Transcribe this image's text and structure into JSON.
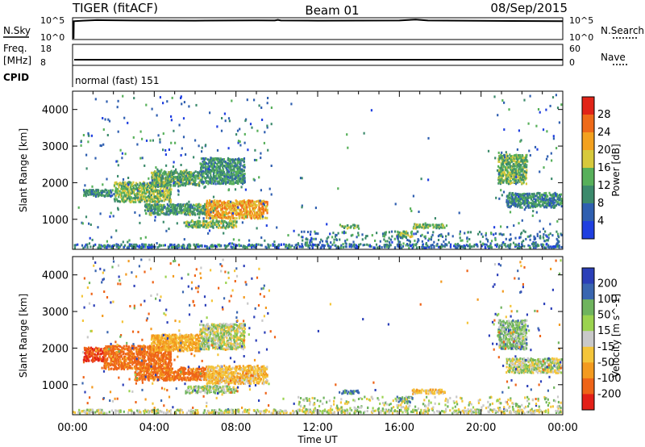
{
  "header": {
    "radar": "TIGER (fitACF)",
    "beam": "Beam 01",
    "date": "08/Sep/2015"
  },
  "top_panels": {
    "nsky_label": "N.Sky",
    "nsky_ticks": [
      "10^5",
      "10^0"
    ],
    "nsearch_label": "N.Search",
    "nsearch_ticks": [
      "10^5",
      "10^0"
    ],
    "freq_label_1": "Freq.",
    "freq_label_2": "[MHz]",
    "freq_ticks": [
      "18",
      "8"
    ],
    "nave_label": "Nave",
    "nave_ticks": [
      "60",
      "0"
    ],
    "cpid_label": "CPID",
    "cpid_value": "normal (fast) 151"
  },
  "colors": {
    "power_scale": [
      "#1f3fe0",
      "#2f5fb0",
      "#3c8a6c",
      "#57b05a",
      "#d7c93c",
      "#f3a11f",
      "#ee6a19",
      "#e12418"
    ],
    "velocity_scale": [
      "#2b3fb8",
      "#3a66b0",
      "#6fb45e",
      "#9bd34f",
      "#c9c9c9",
      "#f4c53a",
      "#f39a1f",
      "#ee6418",
      "#e32018"
    ]
  },
  "chart_data": [
    {
      "type": "heatmap",
      "title": "Power",
      "ylabel": "Slant Range [km]",
      "xlabel": "Time UT",
      "xlim": [
        "00:00",
        "24:00"
      ],
      "ylim": [
        180,
        4500
      ],
      "x_ticks": [
        "00:00",
        "04:00",
        "08:00",
        "12:00",
        "16:00",
        "20:00",
        "00:00"
      ],
      "y_ticks": [
        "1000",
        "2000",
        "3000",
        "4000"
      ],
      "colorbar": {
        "label": "Power [dB]",
        "ticks": [
          "4",
          "8",
          "12",
          "16",
          "20",
          "24",
          "28"
        ],
        "range": [
          0,
          30
        ]
      },
      "regions": [
        {
          "t": [
            0.5,
            2.0
          ],
          "r": [
            1650,
            1850
          ],
          "v": 10
        },
        {
          "t": [
            2.0,
            4.8
          ],
          "r": [
            1500,
            2050
          ],
          "v": 14
        },
        {
          "t": [
            3.8,
            6.2
          ],
          "r": [
            1950,
            2350
          ],
          "v": 12
        },
        {
          "t": [
            6.2,
            8.4
          ],
          "r": [
            2000,
            2700
          ],
          "v": 10
        },
        {
          "t": [
            3.5,
            6.5
          ],
          "r": [
            1150,
            1450
          ],
          "v": 11
        },
        {
          "t": [
            6.5,
            9.5
          ],
          "r": [
            1050,
            1550
          ],
          "v": 20
        },
        {
          "t": [
            5.5,
            8.0
          ],
          "r": [
            800,
            1000
          ],
          "v": 14
        },
        {
          "t": [
            13.0,
            14.0
          ],
          "r": [
            780,
            880
          ],
          "v": 13
        },
        {
          "t": [
            15.8,
            16.6
          ],
          "r": [
            550,
            700
          ],
          "v": 14
        },
        {
          "t": [
            16.6,
            18.2
          ],
          "r": [
            780,
            900
          ],
          "v": 13
        },
        {
          "t": [
            20.8,
            22.2
          ],
          "r": [
            2000,
            2800
          ],
          "v": 13
        },
        {
          "t": [
            21.2,
            24.0
          ],
          "r": [
            1350,
            1750
          ],
          "v": 9
        }
      ]
    },
    {
      "type": "heatmap",
      "title": "Velocity",
      "ylabel": "Slant Range [km]",
      "xlabel": "Time UT",
      "xlim": [
        "00:00",
        "24:00"
      ],
      "ylim": [
        180,
        4500
      ],
      "x_ticks": [
        "00:00",
        "04:00",
        "08:00",
        "12:00",
        "16:00",
        "20:00",
        "00:00"
      ],
      "y_ticks": [
        "1000",
        "2000",
        "3000",
        "4000"
      ],
      "colorbar": {
        "label": "Velocity [m s^-1]",
        "ticks": [
          "200",
          "100",
          "50",
          "15",
          "-15",
          "-50",
          "-100",
          "-200"
        ],
        "range": [
          -250,
          250
        ]
      },
      "regions": [
        {
          "t": [
            0.5,
            1.5
          ],
          "r": [
            1650,
            2050
          ],
          "v": -200
        },
        {
          "t": [
            1.5,
            4.8
          ],
          "r": [
            1450,
            2100
          ],
          "v": -120
        },
        {
          "t": [
            3.8,
            6.2
          ],
          "r": [
            1950,
            2400
          ],
          "v": -60
        },
        {
          "t": [
            6.2,
            8.4
          ],
          "r": [
            2000,
            2700
          ],
          "v": 0
        },
        {
          "t": [
            3.0,
            6.5
          ],
          "r": [
            1150,
            1500
          ],
          "v": -110
        },
        {
          "t": [
            6.5,
            9.5
          ],
          "r": [
            1050,
            1550
          ],
          "v": -40
        },
        {
          "t": [
            5.5,
            8.0
          ],
          "r": [
            800,
            1000
          ],
          "v": 10
        },
        {
          "t": [
            13.0,
            14.0
          ],
          "r": [
            780,
            880
          ],
          "v": 60
        },
        {
          "t": [
            15.8,
            16.6
          ],
          "r": [
            550,
            700
          ],
          "v": 60
        },
        {
          "t": [
            16.6,
            18.2
          ],
          "r": [
            780,
            900
          ],
          "v": -40
        },
        {
          "t": [
            20.8,
            22.2
          ],
          "r": [
            2000,
            2800
          ],
          "v": 20
        },
        {
          "t": [
            21.2,
            24.0
          ],
          "r": [
            1350,
            1750
          ],
          "v": 0
        }
      ]
    }
  ]
}
